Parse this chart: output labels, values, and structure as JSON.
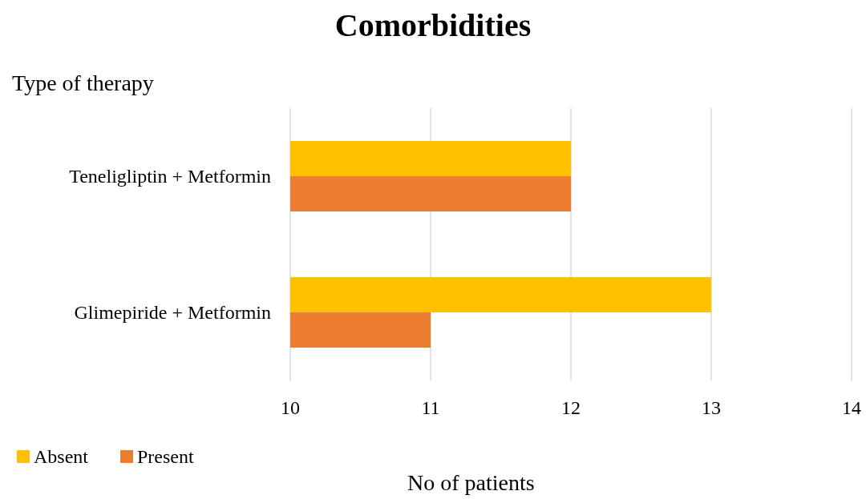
{
  "chart_data": {
    "type": "bar",
    "orientation": "horizontal",
    "title": "Comorbidities",
    "ylabel": "Type of therapy",
    "xlabel": "No of patients",
    "categories": [
      "Teneligliptin + Metformin",
      "Glimepiride + Metformin"
    ],
    "series": [
      {
        "name": "Absent",
        "color": "#ffc000",
        "values": [
          12,
          13
        ]
      },
      {
        "name": "Present",
        "color": "#ed7d31",
        "values": [
          12,
          11
        ]
      }
    ],
    "xlim": [
      10,
      14
    ],
    "xticks": [
      10,
      11,
      12,
      13,
      14
    ],
    "grid": "x",
    "legend": "bottom left"
  }
}
